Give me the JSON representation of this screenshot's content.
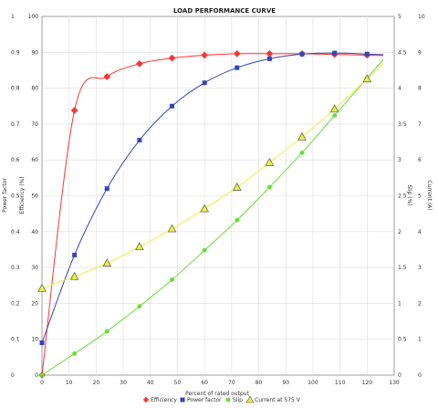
{
  "chart_data": {
    "type": "line",
    "title": "LOAD PERFORMANCE CURVE",
    "xlabel": "Percent of rated output",
    "xlim": [
      0,
      130
    ],
    "x_ticks": [
      "0",
      "10",
      "20",
      "30",
      "40",
      "50",
      "60",
      "70",
      "80",
      "90",
      "100",
      "110",
      "120",
      "130"
    ],
    "axes": {
      "left_outer": {
        "label": "Power factor",
        "lim": [
          0,
          1
        ],
        "ticks": [
          "0",
          "0.1",
          "0.2",
          "0.3",
          "0.4",
          "0.5",
          "0.6",
          "0.7",
          "0.8",
          "0.9",
          "1"
        ]
      },
      "left_inner": {
        "label": "Efficiency (%)",
        "lim": [
          0,
          100
        ],
        "ticks": [
          "0",
          "10",
          "20",
          "30",
          "40",
          "50",
          "60",
          "70",
          "80",
          "90",
          "100"
        ]
      },
      "right_inner": {
        "label": "Slip (%)",
        "lim": [
          0,
          5
        ],
        "ticks": [
          "0",
          "0.5",
          "1",
          "1.5",
          "2",
          "2.5",
          "3",
          "3.5",
          "4",
          "4.5",
          "5"
        ]
      },
      "right_outer": {
        "label": "Current (A)",
        "lim": [
          0,
          10
        ],
        "ticks": [
          "0",
          "1",
          "2",
          "3",
          "4",
          "5",
          "6",
          "7",
          "8",
          "9",
          "10"
        ]
      }
    },
    "grid": true,
    "legend_position": "bottom",
    "series": [
      {
        "name": "Efficiency",
        "axis": "left_inner",
        "color": "#ff3333",
        "marker": "diamond",
        "x": [
          0,
          12,
          24,
          36,
          48,
          60,
          72,
          84,
          96,
          108,
          120
        ],
        "y": [
          0,
          73.8,
          83.2,
          86.8,
          88.4,
          89.2,
          89.6,
          89.6,
          89.6,
          89.4,
          89.2
        ]
      },
      {
        "name": "Power factor",
        "axis": "left_outer",
        "color": "#3344bb",
        "marker": "square",
        "x": [
          0,
          12,
          24,
          36,
          48,
          60,
          72,
          84,
          96,
          108,
          120
        ],
        "y": [
          0.09,
          0.335,
          0.52,
          0.655,
          0.75,
          0.815,
          0.857,
          0.882,
          0.895,
          0.898,
          0.895
        ]
      },
      {
        "name": "Slip",
        "axis": "right_inner",
        "color": "#66dd33",
        "marker": "circle",
        "x": [
          0,
          12,
          24,
          36,
          48,
          60,
          72,
          84,
          96,
          108,
          120
        ],
        "y": [
          0,
          0.3,
          0.61,
          0.96,
          1.33,
          1.74,
          2.16,
          2.62,
          3.1,
          3.62,
          4.14
        ]
      },
      {
        "name": "Current at 575  V",
        "axis": "right_outer",
        "color": "#eeee44",
        "marker": "triangle",
        "x": [
          0,
          12,
          24,
          36,
          48,
          60,
          72,
          84,
          96,
          108,
          120
        ],
        "y": [
          2.42,
          2.75,
          3.12,
          3.58,
          4.08,
          4.64,
          5.24,
          5.93,
          6.64,
          7.42,
          8.26
        ]
      }
    ]
  }
}
